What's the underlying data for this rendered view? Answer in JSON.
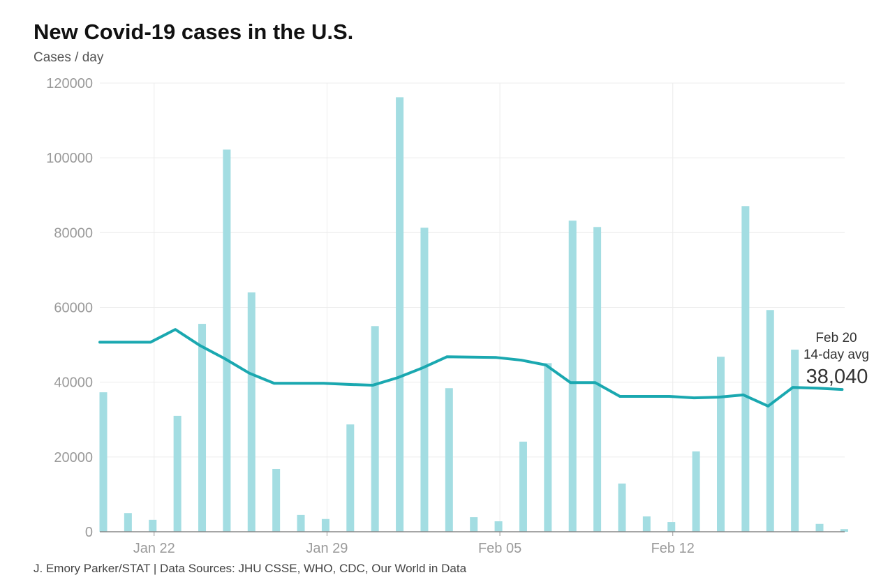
{
  "chart_data": {
    "type": "bar+line",
    "title": "New Covid-19 cases in the U.S.",
    "subtitle": "Cases / day",
    "source": "J. Emory Parker/STAT | Data Sources: JHU CSSE, WHO, CDC, Our World in Data",
    "ylim": [
      0,
      120000
    ],
    "yticks": [
      "0",
      "20000",
      "40000",
      "60000",
      "80000",
      "100000",
      "120000"
    ],
    "xticks": [
      {
        "label": "Jan 22",
        "date": "Jan 22"
      },
      {
        "label": "Jan 29",
        "date": "Jan 29"
      },
      {
        "label": "Feb 05",
        "date": "Feb 05"
      },
      {
        "label": "Feb 12",
        "date": "Feb 12"
      }
    ],
    "grid": true,
    "colors": {
      "bars": "#a3dde2",
      "line": "#1aa8b0"
    },
    "x": [
      "Jan 20",
      "Jan 21",
      "Jan 22",
      "Jan 23",
      "Jan 24",
      "Jan 25",
      "Jan 26",
      "Jan 27",
      "Jan 28",
      "Jan 29",
      "Jan 30",
      "Jan 31",
      "Feb 01",
      "Feb 02",
      "Feb 03",
      "Feb 04",
      "Feb 05",
      "Feb 06",
      "Feb 07",
      "Feb 08",
      "Feb 09",
      "Feb 10",
      "Feb 11",
      "Feb 12",
      "Feb 13",
      "Feb 14",
      "Feb 15",
      "Feb 16",
      "Feb 17",
      "Feb 18",
      "Feb 19"
    ],
    "series": [
      {
        "type": "bar",
        "values": [
          37300,
          5000,
          3200,
          31000,
          55600,
          102200,
          64000,
          16800,
          4500,
          3400,
          28700,
          55000,
          116200,
          81300,
          38400,
          3900,
          2800,
          24100,
          45100,
          83200,
          81500,
          12900,
          4100,
          2600,
          21500,
          46800,
          87100,
          59300,
          48700,
          2100,
          700
        ]
      },
      {
        "type": "line",
        "values": [
          50700,
          50700,
          50700,
          54100,
          49800,
          46300,
          42400,
          39700,
          39700,
          39700,
          39400,
          39200,
          41200,
          43800,
          46800,
          46700,
          46600,
          45900,
          44600,
          39900,
          39900,
          36200,
          36200,
          36200,
          35800,
          36000,
          36600,
          33600,
          38600,
          38400,
          38040
        ]
      }
    ],
    "annotation": {
      "date": "Feb 20",
      "label": "14-day avg",
      "value": "38,040"
    }
  }
}
